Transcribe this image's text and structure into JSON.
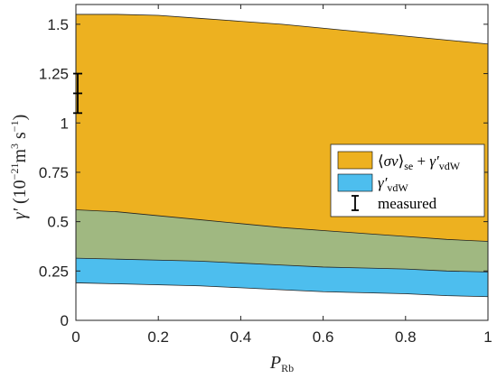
{
  "chart_data": {
    "type": "area",
    "xlabel": "P_Rb",
    "ylabel": "γ′ (10⁻²¹ m³ s⁻¹)",
    "xlim": [
      0,
      1
    ],
    "ylim": [
      0,
      1.6
    ],
    "xticks": [
      "0",
      "0.2",
      "0.4",
      "0.6",
      "0.8",
      "1"
    ],
    "yticks": [
      "0",
      "0.25",
      "0.5",
      "0.75",
      "1",
      "1.25",
      "1.5"
    ],
    "grid": false,
    "legend_position": "right",
    "x": [
      0,
      0.1,
      0.2,
      0.3,
      0.4,
      0.5,
      0.6,
      0.7,
      0.8,
      0.9,
      1.0
    ],
    "series": [
      {
        "name": "⟨σν⟩se + γ′vdW",
        "color": "#EDB120",
        "lower": [
          0.56,
          0.55,
          0.53,
          0.51,
          0.49,
          0.47,
          0.455,
          0.44,
          0.425,
          0.41,
          0.4
        ],
        "upper": [
          1.55,
          1.55,
          1.545,
          1.53,
          1.515,
          1.5,
          1.48,
          1.46,
          1.44,
          1.42,
          1.4
        ]
      },
      {
        "name": "γ′vdW",
        "color": "#4DBEEE",
        "lower": [
          0.19,
          0.185,
          0.18,
          0.175,
          0.165,
          0.155,
          0.145,
          0.14,
          0.135,
          0.125,
          0.12
        ],
        "upper": [
          0.315,
          0.31,
          0.305,
          0.3,
          0.29,
          0.28,
          0.27,
          0.265,
          0.26,
          0.25,
          0.245
        ]
      }
    ],
    "overlap_color": "#A0B881",
    "measured": {
      "name": "measured",
      "x": 0,
      "y": 1.15,
      "yerr_low": 1.05,
      "yerr_high": 1.25
    }
  }
}
